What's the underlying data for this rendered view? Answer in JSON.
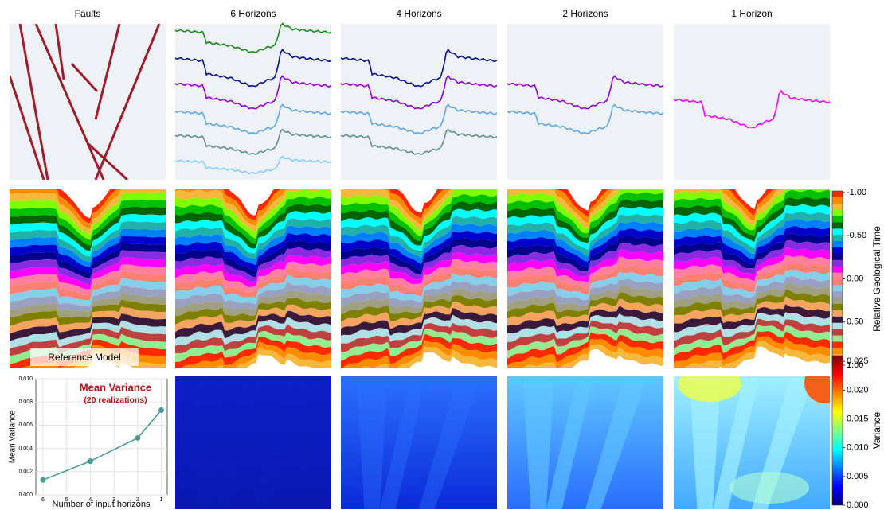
{
  "columns": [
    "Faults",
    "6 Horizons",
    "4 Horizons",
    "2 Horizons",
    "1 Horizon"
  ],
  "reference_label": "Reference Model",
  "colorbars": [
    {
      "label": "Relative Geological Time",
      "lim": [
        -1,
        1
      ],
      "ticks": [
        {
          "value": -1,
          "label": "-1.00"
        },
        {
          "value": -0.5,
          "label": "-0.50"
        },
        {
          "value": 0,
          "label": "0.00"
        },
        {
          "value": 0.5,
          "label": "0.50"
        },
        {
          "value": 1,
          "label": "1.00"
        }
      ]
    },
    {
      "label": "Variance",
      "lim": [
        0,
        0.026
      ],
      "ticks": [
        {
          "value": 0,
          "label": "0.000"
        },
        {
          "value": 0.005,
          "label": "0.005"
        },
        {
          "value": 0.01,
          "label": "0.010"
        },
        {
          "value": 0.015,
          "label": "0.015"
        },
        {
          "value": 0.02,
          "label": "0.020"
        },
        {
          "value": 0.025,
          "label": "0.025"
        }
      ]
    }
  ],
  "chart_data": {
    "type": "line",
    "title": "Mean Variance",
    "subtitle": "(20 realizations)",
    "x_label": "Number of input horizons",
    "y_label": "Mean Variance",
    "x": [
      6,
      4,
      2,
      1
    ],
    "values": [
      0.00128,
      0.0029,
      0.0049,
      0.0073
    ],
    "color": "#4a9a9a",
    "xlim": [
      6.3,
      0.75
    ],
    "ylim": [
      0,
      0.01
    ],
    "xticks": [
      6,
      5,
      4,
      3,
      2,
      1
    ],
    "yticks": [
      {
        "value": 0,
        "label": "0.000"
      },
      {
        "value": 0.002,
        "label": "0.002"
      },
      {
        "value": 0.004,
        "label": "0.004"
      },
      {
        "value": 0.006,
        "label": "0.006"
      },
      {
        "value": 0.008,
        "label": "0.008"
      },
      {
        "value": 0.01,
        "label": "0.010"
      }
    ],
    "grid": true
  }
}
